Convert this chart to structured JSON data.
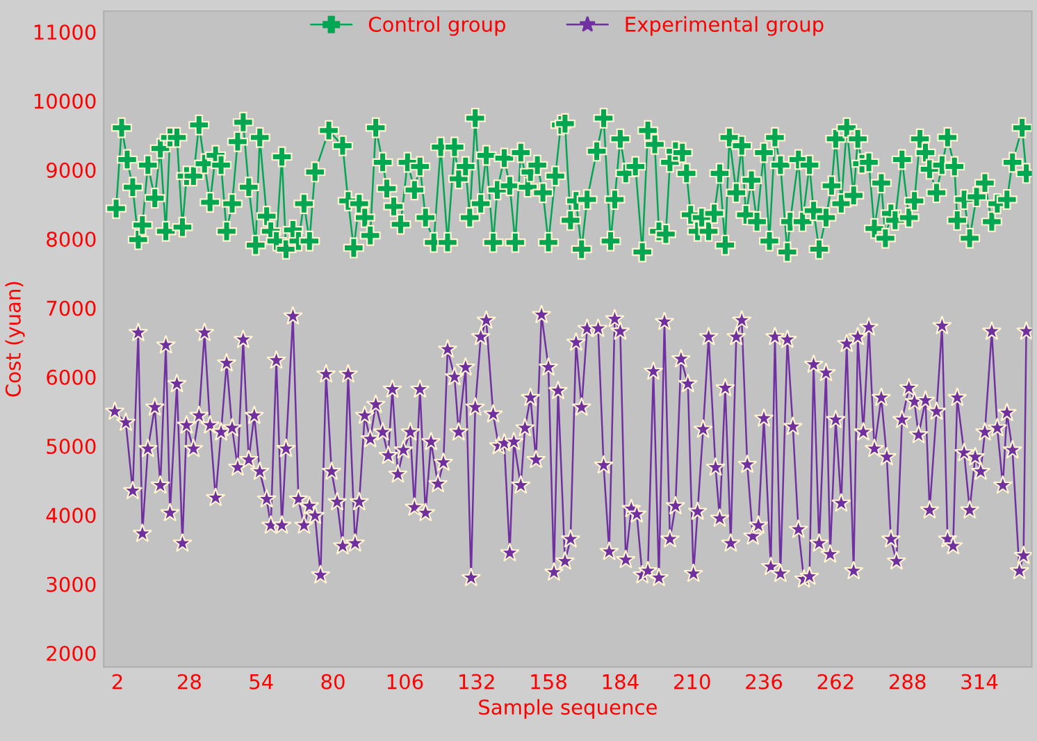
{
  "chart_data": {
    "type": "line",
    "xlabel": "Sample sequence",
    "ylabel": "Cost (yuan)",
    "xlim": [
      -3,
      333
    ],
    "ylim": [
      1800,
      11300
    ],
    "xticks": [
      2,
      28,
      54,
      80,
      106,
      132,
      158,
      184,
      210,
      236,
      262,
      288,
      314
    ],
    "yticks": [
      2000,
      3000,
      4000,
      5000,
      6000,
      7000,
      8000,
      9000,
      10000,
      11000
    ],
    "grid": false,
    "legend": "top",
    "series": [
      {
        "name": "Control group",
        "color": "#00a651",
        "marker": "cross",
        "x": [
          1.5,
          3.5,
          5.5,
          7.5,
          9.5,
          11,
          13,
          15.5,
          17.5,
          19.5,
          21,
          23.5,
          25.5,
          27,
          29.5,
          31.5,
          33.5,
          35.5,
          37.5,
          39.5,
          41.5,
          43.5,
          45.5,
          47.5,
          49.5,
          52,
          53.5,
          56,
          57.5,
          59.5,
          61.5,
          63,
          65.5,
          67.5,
          69.5,
          71.5,
          73.5,
          78.5,
          83.5,
          85.5,
          87.5,
          89.5,
          91.5,
          93.5,
          95.5,
          98,
          99.5,
          102,
          104.5,
          107,
          109.5,
          111.5,
          113.5,
          116.5,
          119,
          121.5,
          124,
          125.5,
          128,
          129.5,
          131.5,
          133.5,
          135.5,
          138,
          139.5,
          142,
          144,
          146,
          148,
          150.5,
          151.5,
          154,
          156,
          158,
          160.5,
          162.5,
          164,
          166,
          168,
          170,
          172,
          175.5,
          178,
          180.5,
          182,
          184,
          186,
          189.5,
          192,
          194,
          196.5,
          198,
          200.5,
          202,
          204,
          206.5,
          208,
          209.5,
          212,
          213.5,
          216,
          218,
          220,
          222,
          223.5,
          226,
          228,
          229.5,
          231.5,
          233.5,
          236,
          238,
          240,
          242,
          244.5,
          245.5,
          248.5,
          250,
          252.5,
          254,
          256,
          258.5,
          260.5,
          262,
          264,
          266,
          268.5,
          270,
          271.5,
          274,
          276,
          278.5,
          280,
          282,
          283.5,
          286,
          288.5,
          290.5,
          292.5,
          294.5,
          296,
          298.5,
          300.5,
          302.5,
          305,
          306,
          308.5,
          310.5,
          313,
          316,
          318.5,
          320.5,
          324,
          326,
          329.5,
          331
        ],
        "values": [
          8440,
          9610,
          9150,
          8750,
          7990,
          8200,
          9070,
          8590,
          9310,
          8110,
          9470,
          9470,
          8170,
          8910,
          8910,
          9650,
          9090,
          8530,
          9210,
          9070,
          8110,
          8510,
          9410,
          9690,
          8750,
          7910,
          9470,
          8330,
          8110,
          7970,
          9190,
          7850,
          8130,
          7970,
          8510,
          7970,
          8970,
          9570,
          9350,
          8550,
          7870,
          8510,
          8310,
          8050,
          9610,
          9110,
          8730,
          8470,
          8210,
          9110,
          8710,
          9050,
          8310,
          7950,
          9330,
          7950,
          9330,
          8870,
          9050,
          8310,
          9750,
          8510,
          9210,
          7950,
          8710,
          9170,
          8770,
          7950,
          9250,
          8750,
          8970,
          9070,
          8670,
          7950,
          8910,
          9650,
          9670,
          8270,
          8550,
          7850,
          8570,
          9270,
          9750,
          7970,
          8570,
          9450,
          8950,
          9050,
          7810,
          9570,
          9370,
          8110,
          8070,
          9110,
          9270,
          9250,
          8950,
          8350,
          8110,
          8310,
          8110,
          8370,
          8950,
          7910,
          9470,
          8670,
          9350,
          8350,
          8850,
          8250,
          9250,
          7970,
          9470,
          9070,
          7810,
          8250,
          9150,
          8250,
          9070,
          8410,
          7850,
          8310,
          8770,
          9450,
          8510,
          9610,
          8630,
          9450,
          9090,
          9110,
          8150,
          8810,
          8010,
          8370,
          8270,
          9150,
          8310,
          8550,
          9450,
          9250,
          9010,
          8670,
          9070,
          9470,
          9050,
          8270,
          8570,
          8010,
          8610,
          8810,
          8250,
          8510,
          8570,
          9110,
          9610,
          8950
        ]
      },
      {
        "name": "Experimental group",
        "color": "#7030a0",
        "marker": "star",
        "x": [
          1,
          5,
          7.5,
          9.5,
          11,
          13,
          15.5,
          17.5,
          19.5,
          21,
          23.5,
          25.5,
          27,
          29.5,
          31.5,
          33.5,
          35.5,
          37.5,
          39.5,
          41.5,
          43.5,
          45.5,
          47.5,
          49.5,
          51.5,
          53.5,
          56,
          57.5,
          59.5,
          61.5,
          63,
          65.5,
          67.5,
          69.5,
          71.5,
          73.5,
          75.5,
          77.5,
          79.5,
          81.5,
          83.5,
          85.5,
          88,
          89.5,
          91.5,
          93.5,
          95.5,
          98,
          100,
          101.5,
          103.5,
          105.5,
          108,
          109.5,
          111.5,
          113.5,
          115.5,
          118,
          120,
          121.5,
          124,
          125.5,
          128,
          130,
          131.5,
          133.5,
          135.5,
          138,
          140,
          142,
          144,
          145.5,
          148,
          149.5,
          151.5,
          153.5,
          155.5,
          158,
          160,
          161.5,
          164,
          166,
          168,
          170,
          172,
          176,
          178,
          180,
          182,
          184,
          186,
          188,
          190,
          192,
          194,
          196,
          198,
          200,
          202,
          204,
          206,
          208.5,
          210.5,
          212,
          214,
          216,
          218.5,
          220,
          222,
          224,
          226,
          228,
          230,
          232,
          234,
          236,
          238.5,
          240,
          242,
          244.5,
          246.5,
          248.5,
          250.5,
          252.5,
          254,
          256,
          258.5,
          260,
          262,
          264,
          266,
          268.5,
          270,
          272,
          274,
          276,
          278.5,
          280.5,
          282,
          284,
          286,
          288.5,
          290.5,
          292,
          294.5,
          296,
          298.5,
          300.5,
          302.5,
          304.5,
          306,
          308.5,
          310.5,
          312.5,
          314.5,
          316,
          318.5,
          320.5,
          322.5,
          324,
          326,
          328.5,
          330,
          331
        ],
        "values": [
          5500,
          5340,
          4350,
          6640,
          3730,
          4960,
          5560,
          4430,
          6460,
          4030,
          5900,
          3590,
          5300,
          4960,
          5440,
          6640,
          5300,
          4250,
          5200,
          6200,
          5260,
          4690,
          6540,
          4800,
          5440,
          4630,
          4230,
          3850,
          6240,
          3850,
          4960,
          6880,
          4230,
          3850,
          4130,
          3990,
          3130,
          6040,
          4630,
          4190,
          3550,
          6040,
          3590,
          4190,
          5440,
          5100,
          5600,
          5200,
          4860,
          5820,
          4590,
          4940,
          5200,
          4110,
          5820,
          4030,
          5060,
          4450,
          4760,
          6400,
          6000,
          5200,
          6140,
          3090,
          5560,
          6580,
          6820,
          5460,
          5000,
          5040,
          3450,
          5060,
          4430,
          5260,
          5700,
          4800,
          6900,
          6140,
          3170,
          5800,
          3330,
          3650,
          6500,
          5560,
          6700,
          6700,
          4720,
          3470,
          6840,
          6660,
          3350,
          4090,
          4010,
          3130,
          3190,
          6080,
          3090,
          6800,
          3650,
          4130,
          6260,
          5900,
          3150,
          4050,
          5240,
          6580,
          4690,
          3950,
          5840,
          3590,
          6580,
          6820,
          4730,
          3690,
          3850,
          5400,
          3250,
          6580,
          3150,
          6540,
          5280,
          3790,
          3070,
          3110,
          6180,
          3590,
          6060,
          3430,
          5380,
          4170,
          6480,
          3190,
          6580,
          5200,
          6720,
          4960,
          5700,
          4840,
          3650,
          3330,
          5380,
          5840,
          5640,
          5160,
          5660,
          4070,
          5500,
          6740,
          3650,
          3550,
          5700,
          4900,
          4070,
          4840,
          4630,
          5200,
          6660,
          5260,
          4430,
          5480,
          4940,
          3190,
          3410,
          6660
        ]
      }
    ]
  }
}
